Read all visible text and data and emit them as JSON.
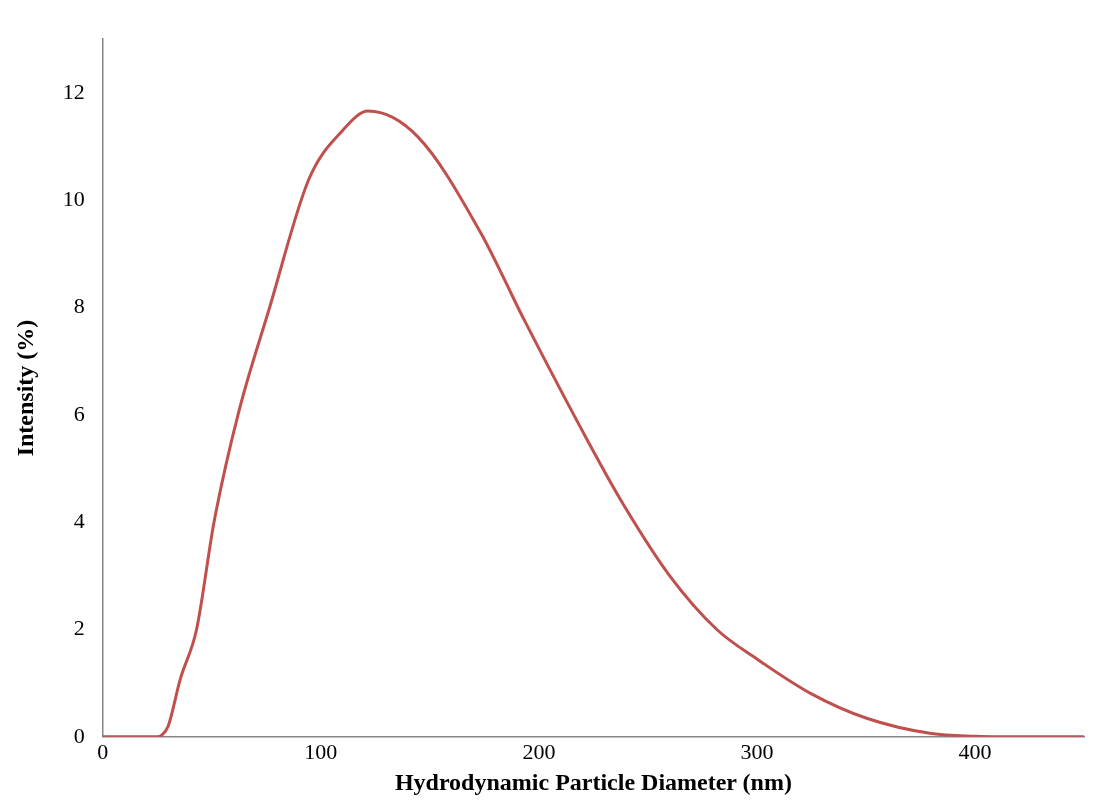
{
  "chart_data": {
    "type": "line",
    "xlabel": "Hydrodynamic Particle Diameter (nm)",
    "ylabel": "Intensity (%)",
    "x": [
      0,
      25,
      27,
      30,
      35.5,
      43,
      51,
      62,
      76.5,
      94.5,
      110,
      121.7,
      144.5,
      172.8,
      193.5,
      222.6,
      238,
      260,
      281.6,
      300,
      325,
      350,
      380,
      400,
      420,
      450
    ],
    "series": [
      {
        "color": "#c0504d",
        "values": [
          0,
          0,
          0.03,
          0.2,
          1.07,
          2,
          4,
          6,
          8,
          10.39,
          11.3,
          11.66,
          11.18,
          9.43,
          7.75,
          5.5,
          4.38,
          3,
          2,
          1.45,
          0.8,
          0.35,
          0.06,
          0.01,
          0,
          0
        ]
      }
    ],
    "xlim": [
      0,
      450
    ],
    "xticks": [
      0,
      100,
      200,
      300,
      400
    ],
    "ylim": [
      0,
      13
    ],
    "yticks": [
      0,
      2,
      4,
      6,
      8,
      10,
      12
    ],
    "grid": false,
    "legend": false,
    "marker": "none",
    "line_style": "solid"
  }
}
